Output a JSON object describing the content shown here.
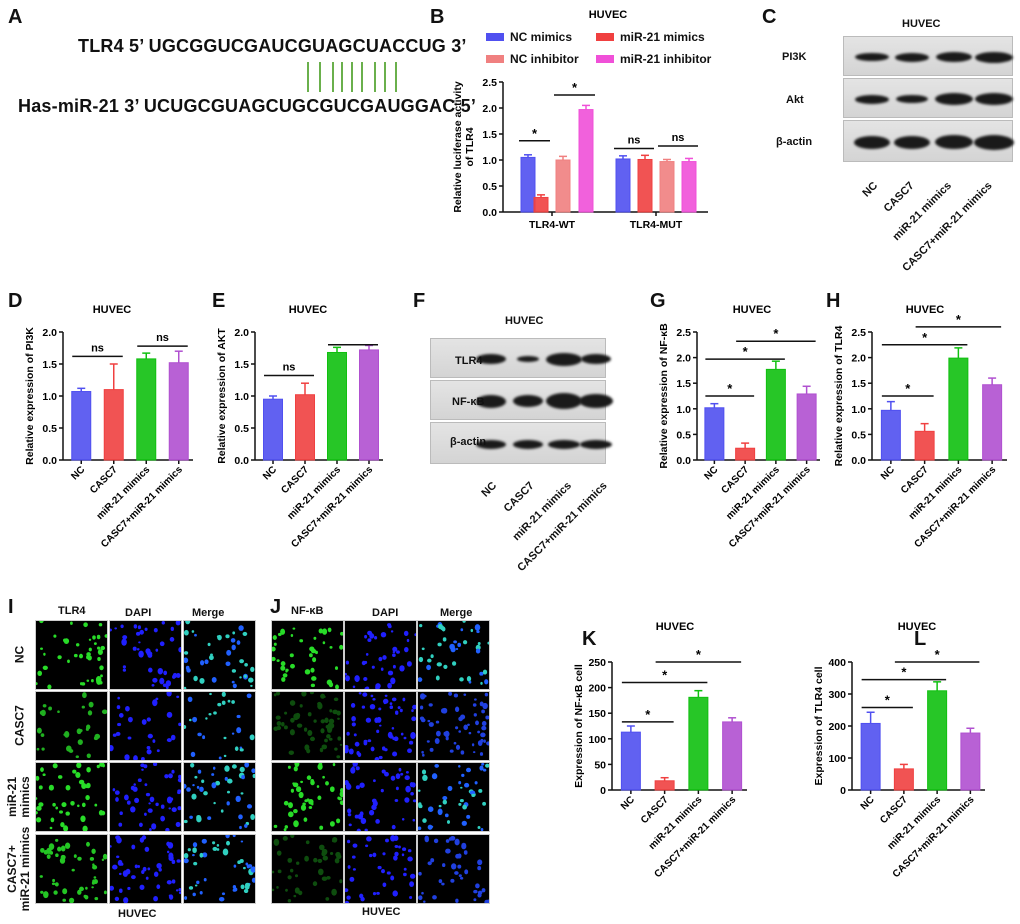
{
  "panels": {
    "A": "A",
    "B": "B",
    "C": "C",
    "D": "D",
    "E": "E",
    "F": "F",
    "G": "G",
    "H": "H",
    "I": "I",
    "J": "J",
    "K": "K",
    "L": "L"
  },
  "sequence": {
    "tlr4": "TLR4  5’ UGCGGUCGAUCGUAGCUACCUG 3’",
    "mir21": "Has-miR-21  3’ UCUGCGUAGCUGCGUCGAUGGAC 5’",
    "pair_color": "#6ab04c",
    "pair_count": 9
  },
  "legend_B": [
    {
      "label": "NC mimics",
      "color": "#5050f0"
    },
    {
      "label": "miR-21 mimics",
      "color": "#f04040"
    },
    {
      "label": "NC  inhibitor",
      "color": "#f08080"
    },
    {
      "label": "miR-21 inhibitor",
      "color": "#f050d8"
    }
  ],
  "blot_C": {
    "title": "HUVEC",
    "rows": [
      "PI3K",
      "Akt",
      "β-actin"
    ],
    "lanes": [
      "NC",
      "CASC7",
      "miR-21 mimics",
      "CASC7+miR-21 mimics"
    ]
  },
  "blot_F": {
    "title": "HUVEC",
    "rows": [
      "TLR4",
      "NF-κB",
      "β-actin"
    ],
    "lanes": [
      "NC",
      "CASC7",
      "miR-21 mimics",
      "CASC7+miR-21 mimics"
    ]
  },
  "if_I": {
    "headers": [
      "TLR4",
      "DAPI",
      "Merge"
    ],
    "rows": [
      "NC",
      "CASC7",
      "miR-21\nmimics",
      "CASC7+\nmiR-21 mimics"
    ],
    "footer": "HUVEC"
  },
  "if_J": {
    "headers": [
      "NF-κB",
      "DAPI",
      "Merge"
    ],
    "footer": "HUVEC"
  },
  "chart_data": [
    {
      "panel": "B",
      "type": "bar",
      "title": "HUVEC",
      "ylabel": "Relative  luciferase activity\nof TLR4",
      "categories": [
        "TLR4-WT",
        "TLR4-MUT"
      ],
      "ylim": [
        0,
        2.5
      ],
      "yticks": [
        "0.0",
        "0.5",
        "1.0",
        "1.5",
        "2.0",
        "2.5"
      ],
      "series": [
        {
          "name": "NC mimics",
          "color": "#5050f0",
          "values": [
            1.05,
            1.02
          ],
          "errors": [
            0.05,
            0.06
          ]
        },
        {
          "name": "miR-21 mimics",
          "color": "#f04040",
          "values": [
            0.28,
            1.01
          ],
          "errors": [
            0.05,
            0.08
          ]
        },
        {
          "name": "NC  inhibitor",
          "color": "#f08080",
          "values": [
            1.0,
            0.97
          ],
          "errors": [
            0.07,
            0.04
          ]
        },
        {
          "name": "miR-21 inhibitor",
          "color": "#f050d8",
          "values": [
            1.97,
            0.97
          ],
          "errors": [
            0.08,
            0.06
          ]
        }
      ],
      "significance": [
        {
          "from": 0,
          "to": 1,
          "y": 1.37,
          "label": "*"
        },
        {
          "from": 2,
          "to": 3,
          "y": 2.25,
          "label": "*"
        },
        {
          "from": 4,
          "to": 5,
          "y": 1.22,
          "label": "ns"
        },
        {
          "from": 6,
          "to": 7,
          "y": 1.27,
          "label": "ns"
        }
      ]
    },
    {
      "panel": "D",
      "type": "bar",
      "title": "HUVEC",
      "ylabel": "Relative expression of PI3K",
      "categories": [
        "NC",
        "CASC7",
        "miR-21 mimics",
        "CASC7+miR-21 mimics"
      ],
      "ylim": [
        0,
        2.0
      ],
      "yticks": [
        "0.0",
        "0.5",
        "1.0",
        "1.5",
        "2.0"
      ],
      "values": [
        1.07,
        1.1,
        1.58,
        1.52
      ],
      "errors": [
        0.05,
        0.4,
        0.09,
        0.18
      ],
      "colors": [
        "#5050f0",
        "#f04040",
        "#10c010",
        "#b050d0"
      ],
      "significance": [
        {
          "from": 0,
          "to": 1,
          "y": 1.62,
          "label": "ns"
        },
        {
          "from": 2,
          "to": 3,
          "y": 1.78,
          "label": "ns"
        }
      ]
    },
    {
      "panel": "E",
      "type": "bar",
      "title": "HUVEC",
      "ylabel": "Relative expression of AKT",
      "categories": [
        "NC",
        "CASC7",
        "miR-21 mimics",
        "CASC7+miR-21 mimics"
      ],
      "ylim": [
        0,
        2.0
      ],
      "yticks": [
        "0.0",
        "0.5",
        "1.0",
        "1.5",
        "2.0"
      ],
      "values": [
        0.95,
        1.02,
        1.68,
        1.72
      ],
      "errors": [
        0.05,
        0.18,
        0.08,
        0.07
      ],
      "colors": [
        "#5050f0",
        "#f04040",
        "#10c010",
        "#b050d0"
      ],
      "significance": [
        {
          "from": 0,
          "to": 1,
          "y": 1.32,
          "label": "ns"
        },
        {
          "from": 2,
          "to": 3,
          "y": 1.8,
          "label": ""
        }
      ]
    },
    {
      "panel": "G",
      "type": "bar",
      "title": "HUVEC",
      "ylabel": "Relative expression of NF-κB",
      "categories": [
        "NC",
        "CASC7",
        "miR-21 mimics",
        "CASC7+miR-21 mimics"
      ],
      "ylim": [
        0,
        2.5
      ],
      "yticks": [
        "0.0",
        "0.5",
        "1.0",
        "1.5",
        "2.0",
        "2.5"
      ],
      "values": [
        1.02,
        0.23,
        1.77,
        1.29
      ],
      "errors": [
        0.08,
        0.1,
        0.16,
        0.15
      ],
      "colors": [
        "#5050f0",
        "#f04040",
        "#10c010",
        "#b050d0"
      ],
      "significance": [
        {
          "from": 0,
          "to": 1,
          "y": 1.25,
          "label": "*"
        },
        {
          "from": 0,
          "to": 2,
          "y": 1.97,
          "label": "*"
        },
        {
          "from": 1,
          "to": 3,
          "y": 2.32,
          "label": "*"
        }
      ]
    },
    {
      "panel": "H",
      "type": "bar",
      "title": "HUVEC",
      "ylabel": "Relative expression of TLR4",
      "categories": [
        "NC",
        "CASC7",
        "miR-21 mimics",
        "CASC7+miR-21 mimics"
      ],
      "ylim": [
        0,
        2.5
      ],
      "yticks": [
        "0.0",
        "0.5",
        "1.0",
        "1.5",
        "2.0",
        "2.5"
      ],
      "values": [
        0.97,
        0.56,
        1.99,
        1.47
      ],
      "errors": [
        0.17,
        0.15,
        0.2,
        0.13
      ],
      "colors": [
        "#5050f0",
        "#f04040",
        "#10c010",
        "#b050d0"
      ],
      "significance": [
        {
          "from": 0,
          "to": 1,
          "y": 1.25,
          "label": "*"
        },
        {
          "from": 0,
          "to": 2,
          "y": 2.25,
          "label": "*"
        },
        {
          "from": 1,
          "to": 3,
          "y": 2.6,
          "label": "*"
        }
      ]
    },
    {
      "panel": "K",
      "type": "bar",
      "title": "HUVEC",
      "ylabel": "Expression of NF-κB cell",
      "categories": [
        "NC",
        "CASC7",
        "miR-21 mimics",
        "CASC7+miR-21 mimics"
      ],
      "ylim": [
        0,
        250
      ],
      "yticks": [
        "0",
        "50",
        "100",
        "150",
        "200",
        "250"
      ],
      "values": [
        113,
        18,
        181,
        133
      ],
      "errors": [
        12,
        6,
        13,
        8
      ],
      "colors": [
        "#5050f0",
        "#f04040",
        "#10c010",
        "#b050d0"
      ],
      "significance": [
        {
          "from": 0,
          "to": 1,
          "y": 133,
          "label": "*"
        },
        {
          "from": 0,
          "to": 2,
          "y": 210,
          "label": "*"
        },
        {
          "from": 1,
          "to": 3,
          "y": 250,
          "label": "*"
        }
      ]
    },
    {
      "panel": "L",
      "type": "bar",
      "title": "HUVEC",
      "ylabel": "Expression of TLR4 cell",
      "categories": [
        "NC",
        "CASC7",
        "miR-21 mimics",
        "CASC7+miR-21 mimics"
      ],
      "ylim": [
        0,
        400
      ],
      "yticks": [
        "0",
        "100",
        "200",
        "300",
        "400"
      ],
      "values": [
        208,
        66,
        310,
        178
      ],
      "errors": [
        35,
        14,
        28,
        15
      ],
      "colors": [
        "#5050f0",
        "#f04040",
        "#10c010",
        "#b050d0"
      ],
      "significance": [
        {
          "from": 0,
          "to": 1,
          "y": 258,
          "label": "*"
        },
        {
          "from": 0,
          "to": 2,
          "y": 345,
          "label": "*"
        },
        {
          "from": 1,
          "to": 3,
          "y": 400,
          "label": "*"
        }
      ]
    }
  ]
}
